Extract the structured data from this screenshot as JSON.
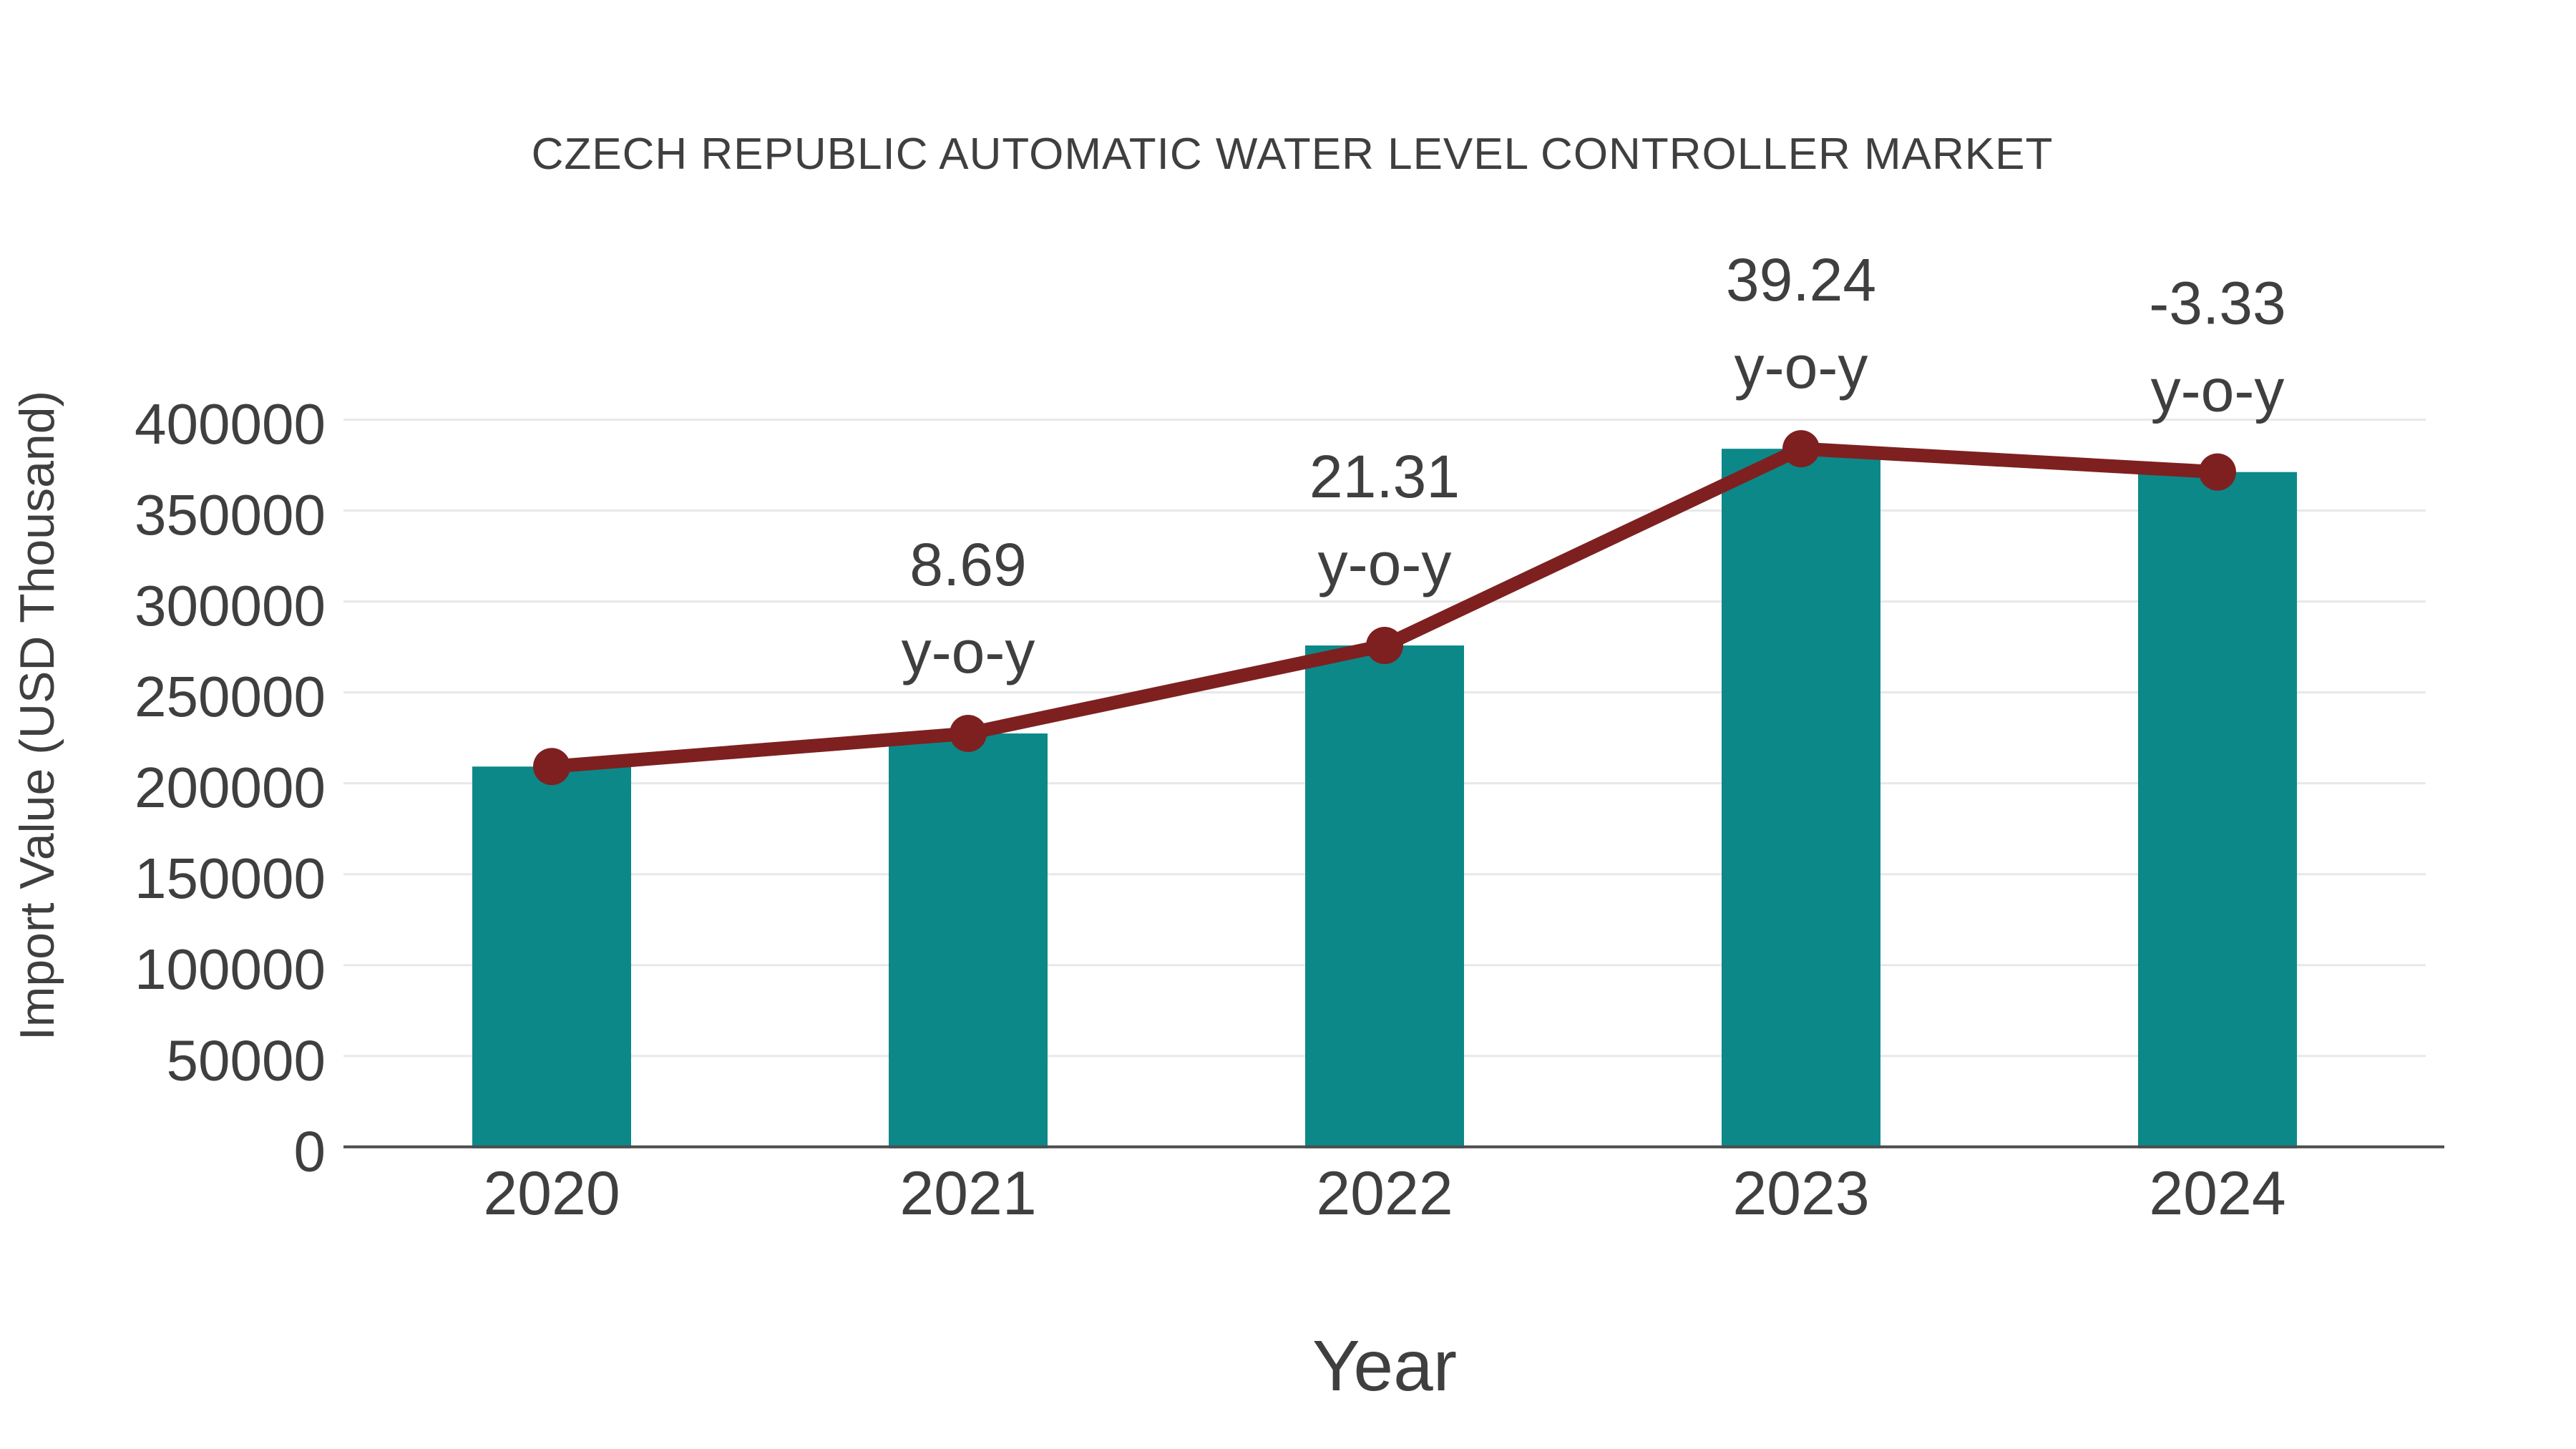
{
  "chart_data": {
    "type": "bar+line",
    "title": "CZECH REPUBLIC AUTOMATIC WATER LEVEL CONTROLLER MARKET",
    "xlabel": "Year",
    "ylabel": "Import Value (USD Thousand)",
    "categories": [
      "2020",
      "2021",
      "2022",
      "2023",
      "2024"
    ],
    "series": [
      {
        "name": "Import Value bars",
        "type": "bar",
        "values": [
          209200,
          227400,
          275800,
          384000,
          371200
        ]
      },
      {
        "name": "Import Value trend",
        "type": "line",
        "values": [
          209200,
          227400,
          275800,
          384000,
          371200
        ]
      }
    ],
    "annotations": [
      {
        "category": "2021",
        "value_label": "8.69",
        "suffix": "y-o-y"
      },
      {
        "category": "2022",
        "value_label": "21.31",
        "suffix": "y-o-y"
      },
      {
        "category": "2023",
        "value_label": "39.24",
        "suffix": "y-o-y"
      },
      {
        "category": "2024",
        "value_label": "-3.33",
        "suffix": "y-o-y"
      }
    ],
    "ylim": [
      0,
      400000
    ],
    "y_ticks": [
      0,
      50000,
      100000,
      150000,
      200000,
      250000,
      300000,
      350000,
      400000
    ],
    "grid": true,
    "legend_position": "none"
  },
  "colors": {
    "bar": "#0d8888",
    "line": "#7e2020",
    "marker": "#7e2020",
    "text": "#3f3f3f",
    "grid": "#e8e8e8",
    "axis": "#4d4d4d",
    "background": "#ffffff"
  }
}
